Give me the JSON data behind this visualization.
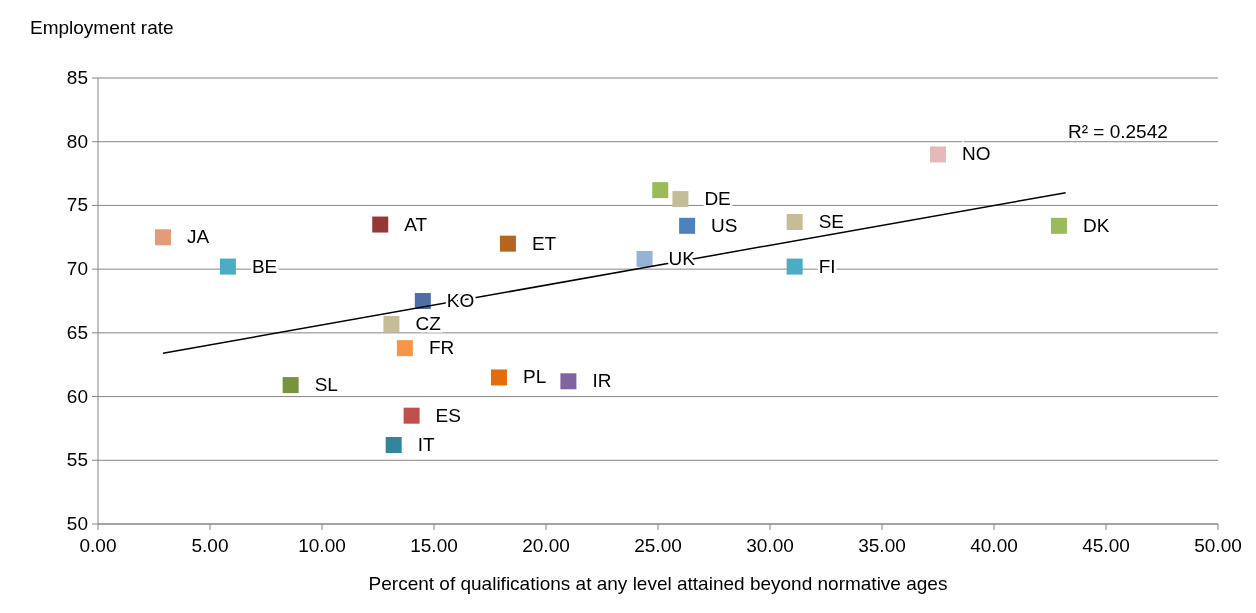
{
  "chart_data": {
    "type": "scatter",
    "ylabel": "Employment rate",
    "xlabel": "Percent of qualifications at any level attained beyond normative ages",
    "xlim": [
      0,
      50
    ],
    "ylim": [
      50,
      85
    ],
    "xticks": [
      {
        "value": 0,
        "label": "0.00"
      },
      {
        "value": 5,
        "label": "5.00"
      },
      {
        "value": 10,
        "label": "10.00"
      },
      {
        "value": 15,
        "label": "15.00"
      },
      {
        "value": 20,
        "label": "20.00"
      },
      {
        "value": 25,
        "label": "25.00"
      },
      {
        "value": 30,
        "label": "30.00"
      },
      {
        "value": 35,
        "label": "35.00"
      },
      {
        "value": 40,
        "label": "40.00"
      },
      {
        "value": 45,
        "label": "45.00"
      },
      {
        "value": 50,
        "label": "50.00"
      }
    ],
    "yticks": [
      50,
      55,
      60,
      65,
      70,
      75,
      80,
      85
    ],
    "grid": "y",
    "marker": "square",
    "series": [
      {
        "name": "JA",
        "color": "#e59a7a",
        "x": [
          2.9
        ],
        "values": [
          72.5
        ]
      },
      {
        "name": "BE",
        "color": "#4bacc6",
        "x": [
          5.8
        ],
        "values": [
          70.2
        ]
      },
      {
        "name": "AT",
        "color": "#953735",
        "x": [
          12.6
        ],
        "values": [
          73.5
        ]
      },
      {
        "name": "ET",
        "color": "#b5651d",
        "x": [
          18.3
        ],
        "values": [
          72.0
        ]
      },
      {
        "name": "KO",
        "color": "#4f6ea8",
        "x": [
          14.5
        ],
        "values": [
          67.5
        ]
      },
      {
        "name": "CZ",
        "color": "#c4bd97",
        "x": [
          13.1
        ],
        "values": [
          65.7
        ]
      },
      {
        "name": "FR",
        "color": "#f79646",
        "x": [
          13.7
        ],
        "values": [
          63.8
        ]
      },
      {
        "name": "SL",
        "color": "#77933c",
        "x": [
          8.6
        ],
        "values": [
          60.9
        ]
      },
      {
        "name": "ES",
        "color": "#c0504d",
        "x": [
          14.0
        ],
        "values": [
          58.5
        ]
      },
      {
        "name": "IT",
        "color": "#31859c",
        "x": [
          13.2
        ],
        "values": [
          56.2
        ]
      },
      {
        "name": "PL",
        "color": "#e46c0a",
        "x": [
          17.9
        ],
        "values": [
          61.5
        ]
      },
      {
        "name": "IR",
        "color": "#8064a2",
        "x": [
          21.0
        ],
        "values": [
          61.2
        ]
      },
      {
        "name": "UK",
        "color": "#95b3d7",
        "x": [
          24.4
        ],
        "values": [
          70.8
        ]
      },
      {
        "name": "US",
        "color": "#4f81bd",
        "x": [
          26.3
        ],
        "values": [
          73.4
        ]
      },
      {
        "color": "#9bbb59",
        "x": [
          25.1
        ],
        "values": [
          76.2
        ]
      },
      {
        "name": "DE",
        "color": "#c4bd97",
        "x": [
          26.0
        ],
        "values": [
          75.5
        ]
      },
      {
        "name": "SE",
        "color": "#c4bd97",
        "x": [
          31.1
        ],
        "values": [
          73.7
        ]
      },
      {
        "name": "FI",
        "color": "#4bacc6",
        "x": [
          31.1
        ],
        "values": [
          70.2
        ]
      },
      {
        "name": "NO",
        "color": "#e6b9b8",
        "x": [
          37.5
        ],
        "values": [
          79.0
        ]
      },
      {
        "name": "DK",
        "color": "#9bbb59",
        "x": [
          42.9
        ],
        "values": [
          73.4
        ]
      },
      {
        "type": "line",
        "color": "#000000",
        "marker": "none",
        "x": [
          2.9,
          43.2
        ],
        "values": [
          63.4,
          76.0
        ]
      }
    ],
    "annotations": [
      "R² = 0.2542"
    ]
  }
}
